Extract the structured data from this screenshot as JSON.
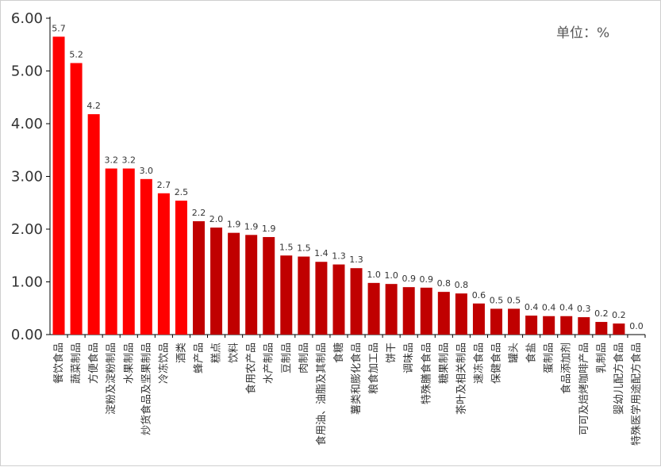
{
  "chart_data": {
    "type": "bar",
    "unit_label": "单位：%",
    "y_tick_labels": [
      "0.00",
      "1.00",
      "2.00",
      "3.00",
      "4.00",
      "5.00",
      "6.00"
    ],
    "ylim": [
      0,
      6
    ],
    "grid": false,
    "categories": [
      "餐饮食品",
      "蔬菜制品",
      "方便食品",
      "淀粉及淀粉制品",
      "水果制品",
      "炒货食品及坚果制品",
      "冷冻饮品",
      "酒类",
      "蜂产品",
      "糕点",
      "饮料",
      "食用农产品",
      "水产制品",
      "豆制品",
      "肉制品",
      "食用油、油脂及其制品",
      "食糖",
      "薯类和膨化食品",
      "粮食加工品",
      "饼干",
      "调味品",
      "特殊膳食食品",
      "糖果制品",
      "茶叶及相关制品",
      "速冻食品",
      "保健食品",
      "罐头",
      "食盐",
      "蛋制品",
      "食品添加剂",
      "可可及焙烤咖啡产品",
      "乳制品",
      "婴幼儿配方食品",
      "特殊医学用途配方食品"
    ],
    "values": [
      5.65,
      5.15,
      4.18,
      3.15,
      3.15,
      2.95,
      2.68,
      2.54,
      2.15,
      2.03,
      1.93,
      1.89,
      1.85,
      1.5,
      1.48,
      1.38,
      1.33,
      1.26,
      0.98,
      0.96,
      0.9,
      0.89,
      0.81,
      0.78,
      0.59,
      0.49,
      0.49,
      0.36,
      0.35,
      0.35,
      0.33,
      0.24,
      0.21,
      0.0
    ],
    "data_labels": [
      "5.7",
      "5.2",
      "4.2",
      "3.2",
      "3.2",
      "3.0",
      "2.7",
      "2.5",
      "2.2",
      "2.0",
      "1.9",
      "1.9",
      "1.9",
      "1.5",
      "1.5",
      "1.4",
      "1.3",
      "1.3",
      "1.0",
      "1.0",
      "0.9",
      "0.9",
      "0.8",
      "0.8",
      "0.6",
      "0.5",
      "0.5",
      "0.4",
      "0.4",
      "0.4",
      "0.3",
      "0.2",
      "0.2",
      "0.0"
    ],
    "highlight_count": 8,
    "colors": {
      "highlight": "#ff0000",
      "normal": "#c00000",
      "axis": "#000000",
      "text": "#333333"
    }
  }
}
